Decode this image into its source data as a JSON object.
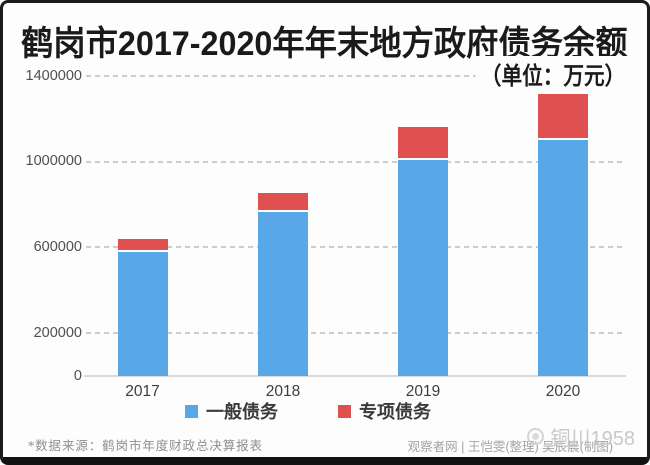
{
  "title": "鹤岗市2017-2020年年末地方政府债务余额",
  "unit_note": "（单位：万元）",
  "chart_data": {
    "type": "bar",
    "stacked": true,
    "categories": [
      "2017",
      "2018",
      "2019",
      "2020"
    ],
    "series": [
      {
        "name": "一般债务",
        "color": "#58a7e6",
        "values": [
          580000,
          765000,
          1010000,
          1100000
        ]
      },
      {
        "name": "专项债务",
        "color": "#df5050",
        "values": [
          58000,
          90000,
          150000,
          215000
        ]
      }
    ],
    "title": "鹤岗市2017-2020年年末地方政府债务余额",
    "xlabel": "",
    "ylabel": "",
    "ylim": [
      0,
      1400000
    ],
    "yticks": [
      0,
      200000,
      600000,
      1000000,
      1400000
    ],
    "grid": "dashed horizontal at yticks",
    "legend_position": "bottom"
  },
  "footer": {
    "source": "*数据来源：鹤岗市年度财政总决算报表",
    "credit": "观察者网 | 王恺雯(整理) 吴辰晨(制图)",
    "watermark": "铜川1958"
  }
}
